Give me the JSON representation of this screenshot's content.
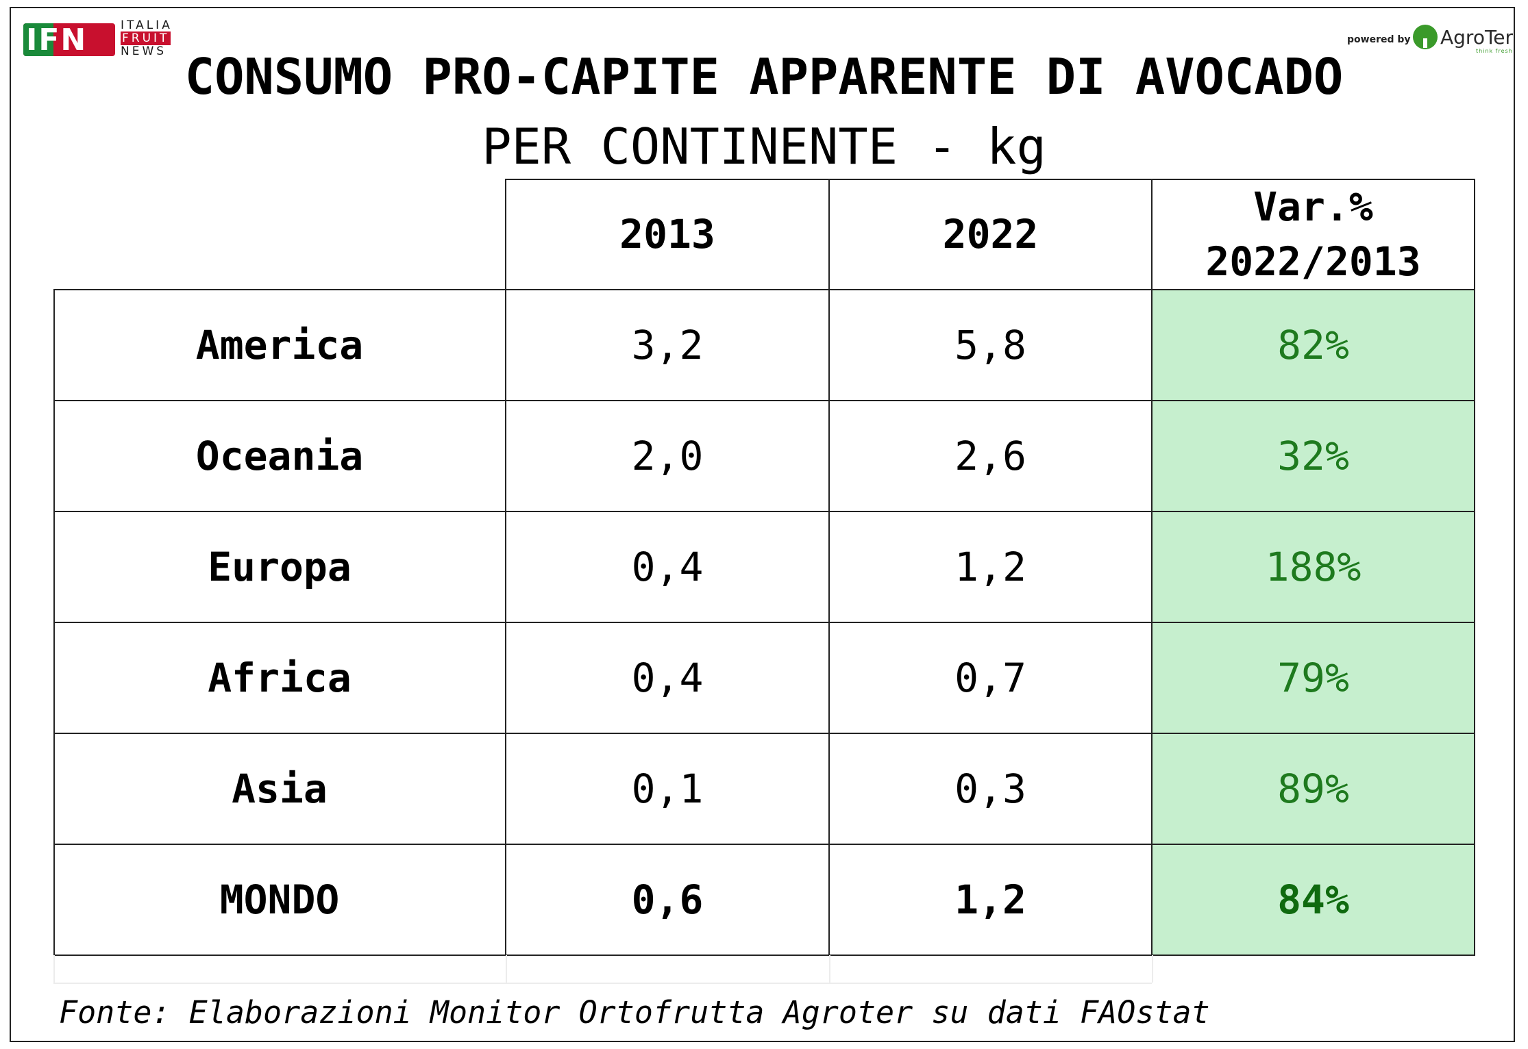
{
  "logo_left": {
    "letters": "IFN",
    "side": [
      "ITALIA",
      "FRUIT",
      "NEWS"
    ]
  },
  "logo_right": {
    "powered": "powered by",
    "name": "AgroTer",
    "tag": "think fresh"
  },
  "title": "CONSUMO PRO-CAPITE APPARENTE DI AVOCADO",
  "subtitle": "PER CONTINENTE - kg",
  "colors": {
    "var_bg": "#c6efce",
    "var_text": "#1e7a1e",
    "border": "#222222"
  },
  "chart_data": {
    "type": "table",
    "title": "CONSUMO PRO-CAPITE APPARENTE DI AVOCADO",
    "subtitle": "PER CONTINENTE - kg",
    "columns": [
      "2013",
      "2022",
      "Var.% 2022/2013"
    ],
    "column_header_lines": [
      [
        "2013"
      ],
      [
        "2022"
      ],
      [
        "Var.%",
        "2022/2013"
      ]
    ],
    "rows": [
      {
        "label": "America",
        "v2013": "3,2",
        "v2022": "5,8",
        "var": "82%"
      },
      {
        "label": "Oceania",
        "v2013": "2,0",
        "v2022": "2,6",
        "var": "32%"
      },
      {
        "label": "Europa",
        "v2013": "0,4",
        "v2022": "1,2",
        "var": "188%"
      },
      {
        "label": "Africa",
        "v2013": "0,4",
        "v2022": "0,7",
        "var": "79%"
      },
      {
        "label": "Asia",
        "v2013": "0,1",
        "v2022": "0,3",
        "var": "89%"
      },
      {
        "label": "MONDO",
        "v2013": "0,6",
        "v2022": "1,2",
        "var": "84%",
        "bold": true
      }
    ]
  },
  "source": "Fonte: Elaborazioni Monitor Ortofrutta Agroter su dati FAOstat"
}
